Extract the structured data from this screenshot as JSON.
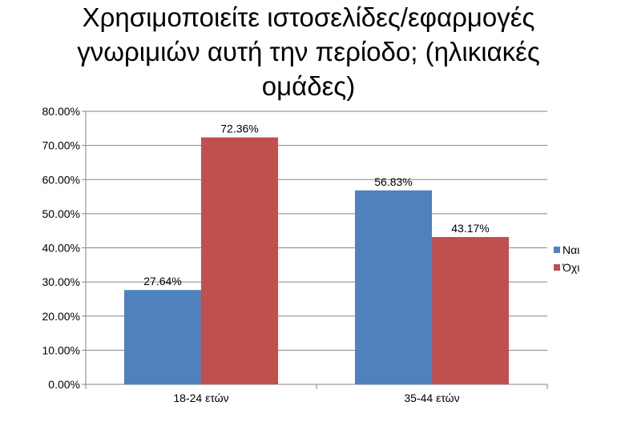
{
  "chart_data": {
    "type": "bar",
    "title_lines": [
      "Χρησιμοποιείτε ιστοσελίδες/εφαρμογές",
      "γνωριμιών αυτή την περίοδο; (ηλικιακές",
      "ομάδες)"
    ],
    "categories": [
      "18-24 ετών",
      "35-44 ετών"
    ],
    "series": [
      {
        "name": "Ναι",
        "values": [
          27.64,
          56.83
        ],
        "labels": [
          "27.64%",
          "56.83%"
        ],
        "color": "#4F81BD"
      },
      {
        "name": "Όχι",
        "values": [
          72.36,
          43.17
        ],
        "labels": [
          "72.36%",
          "43.17%"
        ],
        "color": "#C0504D"
      }
    ],
    "ylim": [
      0,
      80
    ],
    "yticks": [
      "0.00%",
      "10.00%",
      "20.00%",
      "30.00%",
      "40.00%",
      "50.00%",
      "60.00%",
      "70.00%",
      "80.00%"
    ],
    "ytick_values": [
      0,
      10,
      20,
      30,
      40,
      50,
      60,
      70,
      80
    ],
    "grid": true,
    "legend_position": "right",
    "xlabel": "",
    "ylabel": ""
  }
}
